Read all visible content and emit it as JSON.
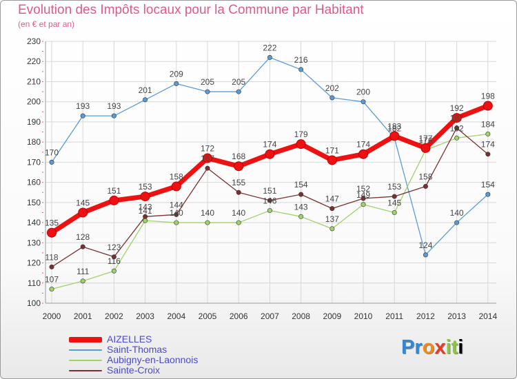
{
  "title": "Evolution des Impôts locaux pour la Commune par Habitant",
  "subtitle": "(en € et par an)",
  "brand": "Proxiti",
  "colors": {
    "title": "#e05a86",
    "axis_text": "#333333",
    "grid": "#d7d7d7",
    "legend_text": "#4a4ad0"
  },
  "chart_data": {
    "type": "line",
    "title": "Evolution des Impôts locaux pour la Commune par Habitant",
    "subtitle": "(en € et par an)",
    "x": [
      "2000",
      "2001",
      "2002",
      "2003",
      "2004",
      "2005",
      "2006",
      "2007",
      "2008",
      "2009",
      "2010",
      "2011",
      "2012",
      "2013",
      "2014"
    ],
    "ylim": [
      100,
      230
    ],
    "yticks": [
      100,
      110,
      120,
      130,
      140,
      150,
      160,
      170,
      180,
      190,
      200,
      210,
      220,
      230
    ],
    "grid": true,
    "legend_position": "bottom-left",
    "series": [
      {
        "name": "Saint-Thomas",
        "color": "#5b9bd5",
        "emphasis": false,
        "values": [
          170,
          193,
          193,
          201,
          209,
          205,
          205,
          222,
          216,
          202,
          200,
          182,
          124,
          140,
          154
        ]
      },
      {
        "name": "Aubigny-en-Laonnois",
        "color": "#9ed36a",
        "emphasis": false,
        "values": [
          107,
          111,
          116,
          141,
          140,
          140,
          140,
          146,
          143,
          137,
          149,
          145,
          176,
          182,
          184
        ]
      },
      {
        "name": "Sainte-Croix",
        "color": "#7a3030",
        "emphasis": false,
        "values": [
          118,
          128,
          123,
          143,
          144,
          167,
          155,
          151,
          154,
          147,
          152,
          153,
          158,
          187,
          174
        ]
      },
      {
        "name": "AIZELLES",
        "color": "#ee1111",
        "emphasis": true,
        "values": [
          135,
          145,
          151,
          153,
          158,
          172,
          168,
          174,
          179,
          171,
          174,
          183,
          177,
          192,
          198
        ]
      }
    ]
  },
  "legend": [
    {
      "name": "AIZELLES",
      "color": "#ee1111"
    },
    {
      "name": "Saint-Thomas",
      "color": "#5b9bd5"
    },
    {
      "name": "Aubigny-en-Laonnois",
      "color": "#9ed36a"
    },
    {
      "name": "Sainte-Croix",
      "color": "#7a3030"
    }
  ]
}
